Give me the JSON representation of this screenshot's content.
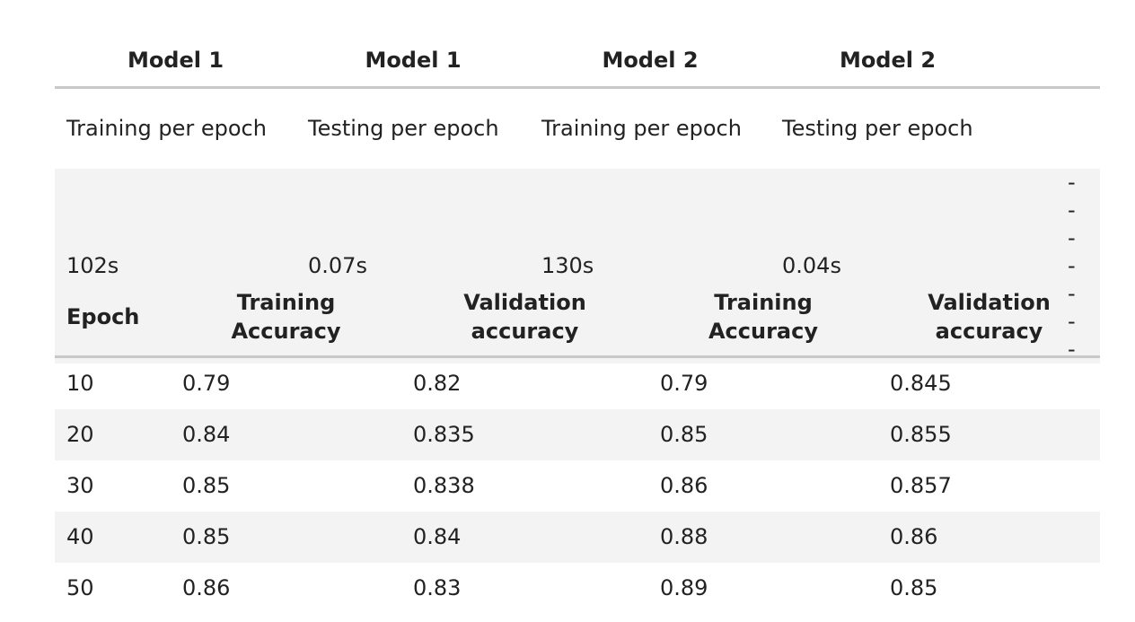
{
  "timing_table": {
    "headers": [
      "Model 1",
      "Model 1",
      "Model 2",
      "Model 2",
      ""
    ],
    "labels": [
      "Training per epoch",
      "Testing per epoch",
      "Training per epoch",
      "Testing per epoch",
      ""
    ],
    "values": [
      "102s",
      "0.07s",
      "130s",
      "0.04s",
      "-------"
    ]
  },
  "accuracy_table": {
    "headers": [
      "Epoch",
      "Training Accuracy",
      "Validation accuracy",
      "Training Accuracy",
      "Validation accuracy"
    ],
    "rows": [
      [
        "10",
        "0.79",
        "0.82",
        "0.79",
        "0.845"
      ],
      [
        "20",
        "0.84",
        "0.835",
        "0.85",
        "0.855"
      ],
      [
        "30",
        "0.85",
        "0.838",
        "0.86",
        "0.857"
      ],
      [
        "40",
        "0.85",
        "0.84",
        "0.88",
        "0.86"
      ],
      [
        "50",
        "0.86",
        "0.83",
        "0.89",
        "0.85"
      ]
    ]
  }
}
